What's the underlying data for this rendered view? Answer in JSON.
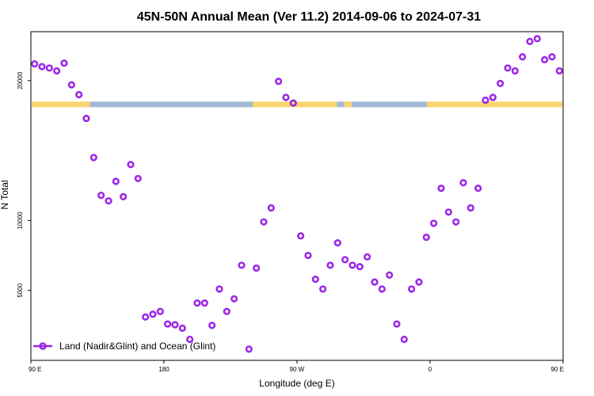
{
  "chart_data": {
    "type": "scatter",
    "title": "45N-50N Annual Mean (Ver 11.2)   2014-09-06 to 2024-07-31",
    "xlabel": "Longitude (deg E)",
    "ylabel": "N Total",
    "xlim": [
      90,
      450
    ],
    "ylim": [
      0,
      23500
    ],
    "x_ticks": [
      {
        "value": 90,
        "label": "90 E"
      },
      {
        "value": 180,
        "label": "180"
      },
      {
        "value": 270,
        "label": "90 W"
      },
      {
        "value": 360,
        "label": "0"
      },
      {
        "value": 450,
        "label": "90 E"
      },
      {
        "value": 540,
        "label": "180"
      }
    ],
    "y_ticks": [
      {
        "value": 5000,
        "label": "5000"
      },
      {
        "value": 10000,
        "label": "10000"
      },
      {
        "value": 20000,
        "label": "20000"
      }
    ],
    "grid": false,
    "legend": "bottom-left",
    "colors": {
      "series": "#9b26e8",
      "land": "#f8d56e",
      "ocean": "#a4b8d8"
    },
    "land_ocean_band": {
      "y_range": [
        18100,
        18500
      ],
      "segments": [
        {
          "from": 90,
          "to": 130,
          "kind": "land"
        },
        {
          "from": 130,
          "to": 240,
          "kind": "ocean"
        },
        {
          "from": 240,
          "to": 297,
          "kind": "land"
        },
        {
          "from": 297,
          "to": 302,
          "kind": "ocean"
        },
        {
          "from": 302,
          "to": 307,
          "kind": "land"
        },
        {
          "from": 307,
          "to": 358,
          "kind": "ocean"
        },
        {
          "from": 358,
          "to": 490,
          "kind": "land"
        },
        {
          "from": 490,
          "to": 600,
          "kind": "ocean"
        }
      ]
    },
    "series": [
      {
        "name": "Land (Nadir&Glint) and Ocean (Glint)",
        "x": [
          92.5,
          97.5,
          102.5,
          107.5,
          112.5,
          117.5,
          122.5,
          127.5,
          132.5,
          137.5,
          142.5,
          147.5,
          152.5,
          157.5,
          162.5,
          167.5,
          172.5,
          177.5,
          182.5,
          187.5,
          192.5,
          197.5,
          202.5,
          207.5,
          212.5,
          217.5,
          222.5,
          227.5,
          232.5,
          237.5,
          242.5,
          247.5,
          252.5,
          257.5,
          262.5,
          267.5,
          272.5,
          277.5,
          282.5,
          287.5,
          292.5,
          297.5,
          302.5,
          307.5,
          312.5,
          317.5,
          322.5,
          327.5,
          332.5,
          337.5,
          342.5,
          347.5,
          352.5,
          357.5,
          362.5,
          367.5,
          372.5,
          377.5,
          382.5,
          387.5,
          392.5,
          397.5,
          402.5,
          407.5,
          412.5,
          417.5,
          422.5,
          427.5,
          432.5,
          437.5,
          442.5,
          447.5
        ],
        "y": [
          21200,
          21000,
          20900,
          20700,
          21250,
          19700,
          19000,
          17300,
          14500,
          11800,
          11400,
          12800,
          11700,
          14000,
          13000,
          3100,
          3300,
          3500,
          2600,
          2550,
          2300,
          1500,
          4100,
          4100,
          2500,
          5100,
          3500,
          4400,
          6800,
          800,
          6600,
          9900,
          10900,
          19950,
          18800,
          18400,
          8900,
          7500,
          5800,
          5100,
          6800,
          8400,
          7200,
          6800,
          6700,
          7400,
          5600,
          5100,
          6100,
          2600,
          1500,
          5100,
          5600,
          8800,
          9800,
          12300,
          10600,
          9900,
          12700,
          10900,
          12300,
          18600,
          18800,
          19800,
          20900,
          20700,
          21700,
          22800,
          23000,
          21500,
          21700,
          20700
        ],
        "y_orig_note": ""
      }
    ]
  },
  "legend_label": "Land (Nadir&Glint) and Ocean (Glint)"
}
